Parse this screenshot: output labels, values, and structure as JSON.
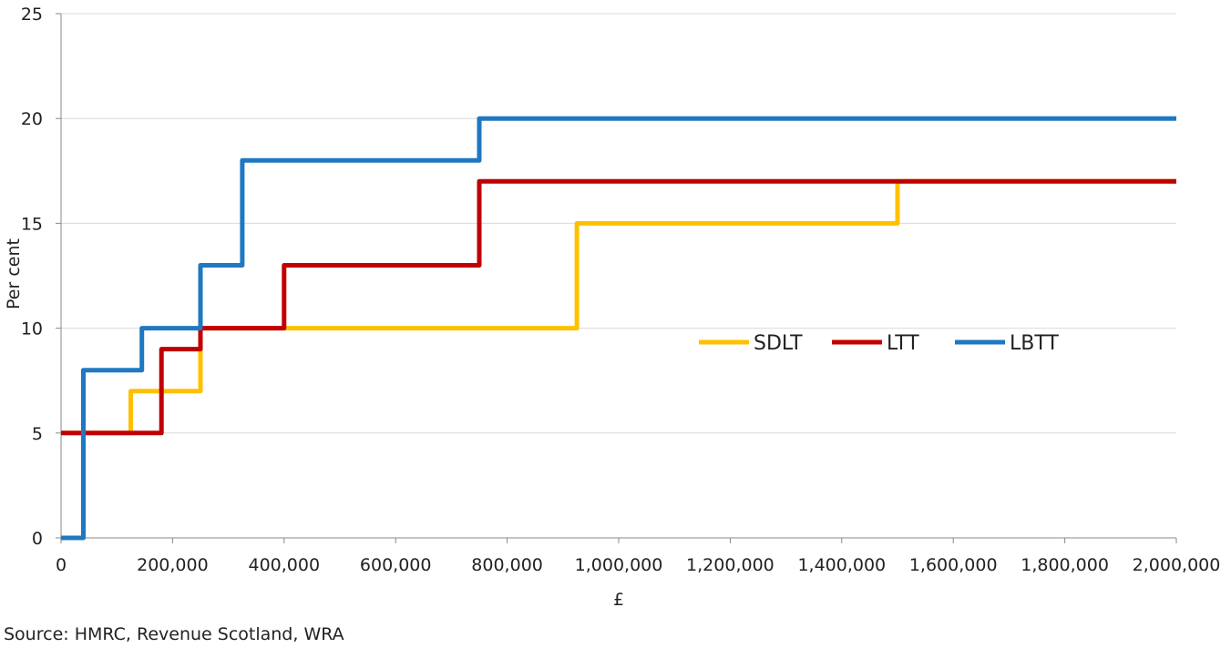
{
  "chart_data": {
    "type": "line",
    "step": true,
    "xlabel": "£",
    "ylabel": "Per cent",
    "xlim": [
      0,
      2000000
    ],
    "ylim": [
      0,
      25
    ],
    "x_ticks": [
      0,
      200000,
      400000,
      600000,
      800000,
      1000000,
      1200000,
      1400000,
      1600000,
      1800000,
      2000000
    ],
    "x_tick_labels": [
      "0",
      "200,000",
      "400,000",
      "600,000",
      "800,000",
      "1,000,000",
      "1,200,000",
      "1,400,000",
      "1,600,000",
      "1,800,000",
      "2,000,000"
    ],
    "y_ticks": [
      0,
      5,
      10,
      15,
      20,
      25
    ],
    "y_tick_labels": [
      "0",
      "5",
      "10",
      "15",
      "20",
      "25"
    ],
    "grid": "horizontal",
    "legend_position": "center-right",
    "series": [
      {
        "name": "SDLT",
        "color": "#FFC000",
        "points": [
          [
            0,
            5
          ],
          [
            125000,
            5
          ],
          [
            125000,
            7
          ],
          [
            250000,
            7
          ],
          [
            250000,
            10
          ],
          [
            925000,
            10
          ],
          [
            925000,
            15
          ],
          [
            1500000,
            15
          ],
          [
            1500000,
            17
          ],
          [
            2000000,
            17
          ]
        ]
      },
      {
        "name": "LTT",
        "color": "#C00000",
        "points": [
          [
            0,
            5
          ],
          [
            180000,
            5
          ],
          [
            180000,
            9
          ],
          [
            250000,
            9
          ],
          [
            250000,
            10
          ],
          [
            400000,
            10
          ],
          [
            400000,
            13
          ],
          [
            750000,
            13
          ],
          [
            750000,
            17
          ],
          [
            2000000,
            17
          ]
        ]
      },
      {
        "name": "LBTT",
        "color": "#1F78C1",
        "points": [
          [
            0,
            0
          ],
          [
            40000,
            0
          ],
          [
            40000,
            8
          ],
          [
            145000,
            8
          ],
          [
            145000,
            10
          ],
          [
            250000,
            10
          ],
          [
            250000,
            13
          ],
          [
            325000,
            13
          ],
          [
            325000,
            18
          ],
          [
            750000,
            18
          ],
          [
            750000,
            20
          ],
          [
            2000000,
            20
          ]
        ]
      }
    ]
  },
  "source_text": "Source: HMRC, Revenue Scotland, WRA"
}
